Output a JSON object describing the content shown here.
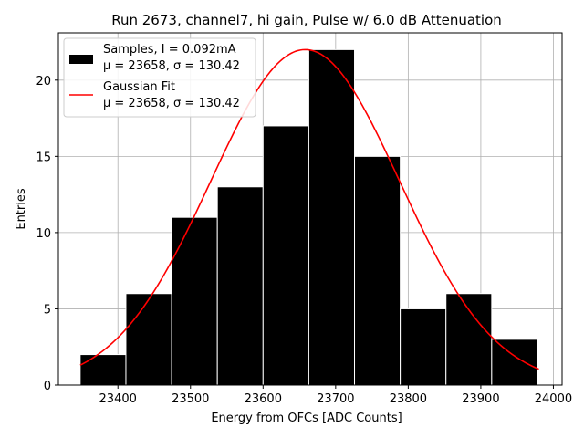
{
  "chart_data": {
    "type": "bar",
    "title": "Run 2673, channel7, hi gain, Pulse w/ 6.0 dB Attenuation",
    "xlabel": "Energy from OFCs [ADC Counts]",
    "ylabel": "Entries",
    "xlim": [
      23318,
      24012
    ],
    "ylim": [
      0,
      23.1
    ],
    "xticks": [
      23400,
      23500,
      23600,
      23700,
      23800,
      23900,
      24000
    ],
    "yticks": [
      0,
      5,
      10,
      15,
      20
    ],
    "grid": true,
    "bins": {
      "edges": [
        23348,
        23411,
        23474,
        23537,
        23600,
        23663,
        23726,
        23789,
        23852,
        23915,
        23978
      ],
      "counts": [
        2,
        6,
        11,
        13,
        17,
        22,
        15,
        5,
        6,
        3
      ],
      "color": "#000000",
      "edgecolor": "#ffffff"
    },
    "fit": {
      "name": "Gaussian Fit",
      "amplitude": 22,
      "mu": 23658,
      "sigma": 130.42,
      "x_range": [
        23348,
        23980
      ],
      "color": "#ff0000"
    },
    "legend": {
      "location": "upper left",
      "entries": [
        {
          "line1": "Samples, I = 0.092mA",
          "line2": "μ = 23658, σ = 130.42",
          "style": "box"
        },
        {
          "line1": "Gaussian Fit",
          "line2": "μ = 23658, σ = 130.42",
          "style": "line"
        }
      ]
    }
  }
}
